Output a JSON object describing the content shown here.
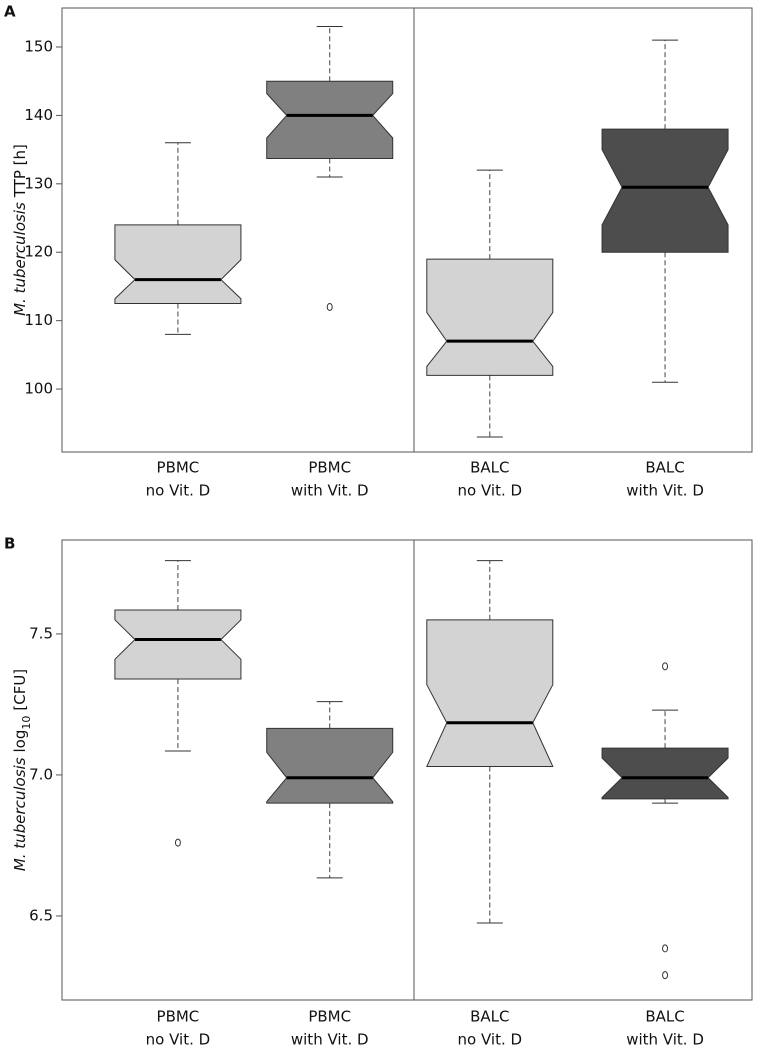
{
  "chart_data": [
    {
      "type": "box",
      "panel": "A",
      "ylabel": [
        {
          "text": "M. tuberculosis",
          "style": "italic"
        },
        {
          "text": "TTP [h]",
          "style": "normal"
        }
      ],
      "categories": [
        [
          "PBMC",
          "no Vit. D"
        ],
        [
          "PBMC",
          "with Vit. D"
        ],
        [
          "BALC",
          "no Vit. D"
        ],
        [
          "BALC",
          "with Vit. D"
        ]
      ],
      "ylim": [
        90.8,
        155.7
      ],
      "yticks": [
        100,
        110,
        120,
        130,
        140,
        150
      ],
      "boxes": [
        {
          "whisker_low": 108,
          "q1": 112.5,
          "median": 116,
          "q3": 124,
          "whisker_high": 136,
          "notch": [
            113.2,
            118.9
          ],
          "outliers": [],
          "color": "#d3d3d3"
        },
        {
          "whisker_low": 131,
          "q1": 133.7,
          "median": 140,
          "q3": 145,
          "whisker_high": 153,
          "notch": [
            136.7,
            143.2
          ],
          "outliers": [
            112
          ],
          "color": "#808080"
        },
        {
          "whisker_low": 93,
          "q1": 102,
          "median": 107,
          "q3": 119,
          "whisker_high": 132,
          "notch": [
            103.3,
            111.2
          ],
          "outliers": [],
          "color": "#d3d3d3"
        },
        {
          "whisker_low": 101,
          "q1": 120,
          "median": 129.5,
          "q3": 138,
          "whisker_high": 151,
          "notch": [
            124,
            135
          ],
          "outliers": [],
          "color": "#4d4d4d"
        }
      ]
    },
    {
      "type": "box",
      "panel": "B",
      "ylabel": [
        {
          "text": "M. tuberculosis",
          "style": "italic"
        },
        {
          "text": "log",
          "style": "normal"
        },
        {
          "text": "10",
          "style": "sub"
        },
        {
          "text": "[CFU]",
          "style": "normal"
        }
      ],
      "categories": [
        [
          "PBMC",
          "no Vit. D"
        ],
        [
          "PBMC",
          "with Vit. D"
        ],
        [
          "BALC",
          "no Vit. D"
        ],
        [
          "BALC",
          "with Vit. D"
        ]
      ],
      "ylim": [
        6.202,
        7.833
      ],
      "yticks": [
        6.5,
        {
          "value": 7,
          "label": "7.0"
        },
        7.5
      ],
      "boxes": [
        {
          "whisker_low": 7.085,
          "q1": 7.34,
          "median": 7.48,
          "q3": 7.585,
          "whisker_high": 7.76,
          "notch": [
            7.41,
            7.55
          ],
          "outliers": [
            6.76
          ],
          "color": "#d3d3d3"
        },
        {
          "whisker_low": 6.635,
          "q1": 6.9,
          "median": 6.99,
          "q3": 7.165,
          "whisker_high": 7.26,
          "notch": [
            6.905,
            7.08
          ],
          "outliers": [],
          "color": "#808080"
        },
        {
          "whisker_low": 6.475,
          "q1": 7.03,
          "median": 7.185,
          "q3": 7.55,
          "whisker_high": 7.76,
          "notch": [
            7.03,
            7.32
          ],
          "outliers": [],
          "color": "#d3d3d3"
        },
        {
          "whisker_low": 6.9,
          "q1": 6.915,
          "median": 6.99,
          "q3": 7.095,
          "whisker_high": 7.23,
          "notch": [
            6.92,
            7.06
          ],
          "outliers": [
            7.385,
            6.385,
            6.29
          ],
          "color": "#4d4d4d"
        }
      ]
    }
  ]
}
